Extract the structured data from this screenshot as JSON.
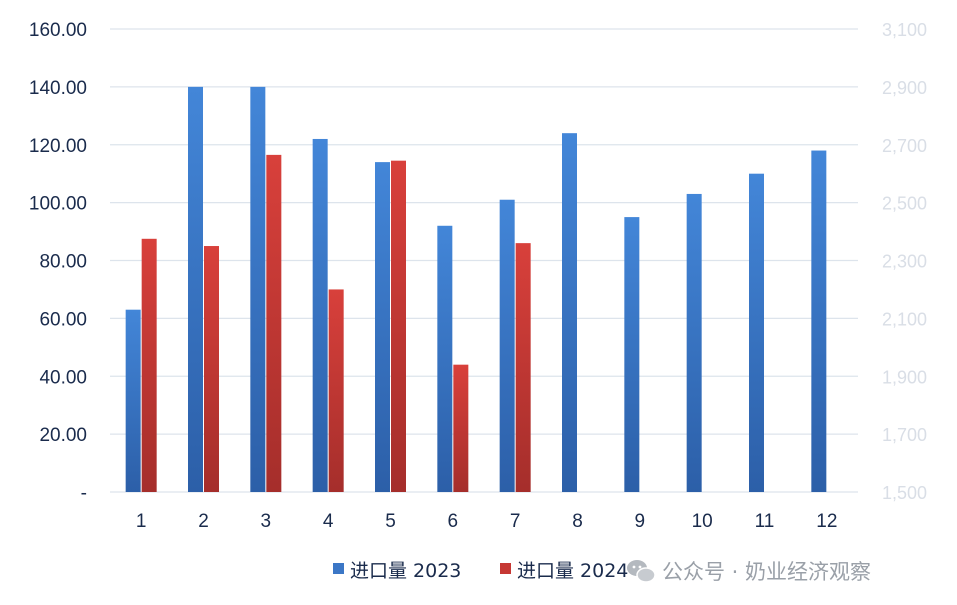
{
  "chart_data": {
    "type": "bar",
    "categories": [
      "1",
      "2",
      "3",
      "4",
      "5",
      "6",
      "7",
      "8",
      "9",
      "10",
      "11",
      "12"
    ],
    "series": [
      {
        "name": "进口量 2023",
        "color": "#3b77c6",
        "values": [
          63,
          140,
          140,
          122,
          114,
          92,
          101,
          124,
          95,
          103,
          110,
          118
        ]
      },
      {
        "name": "进口量 2024",
        "color": "#c63834",
        "values": [
          87.5,
          85,
          116.5,
          70,
          114.5,
          44,
          86,
          null,
          null,
          null,
          null,
          null
        ]
      }
    ],
    "y_left": {
      "ylim": [
        0,
        160
      ],
      "ticks": [
        0,
        20,
        40,
        60,
        80,
        100,
        120,
        140,
        160
      ],
      "tick_labels": [
        "-",
        "20.00",
        "40.00",
        "60.00",
        "80.00",
        "100.00",
        "120.00",
        "140.00",
        "160.00"
      ]
    },
    "y_right": {
      "ylim": [
        1500,
        3100
      ],
      "ticks": [
        1500,
        1700,
        1900,
        2100,
        2300,
        2500,
        2700,
        2900,
        3100
      ],
      "tick_labels": [
        "1,500",
        "1,700",
        "1,900",
        "2,100",
        "2,300",
        "2,500",
        "2,700",
        "2,900",
        "3,100"
      ]
    },
    "grid": true,
    "legend_position": "bottom-center"
  },
  "watermark": {
    "icon": "wechat-icon",
    "text": "公众号 · 奶业经济观察"
  }
}
